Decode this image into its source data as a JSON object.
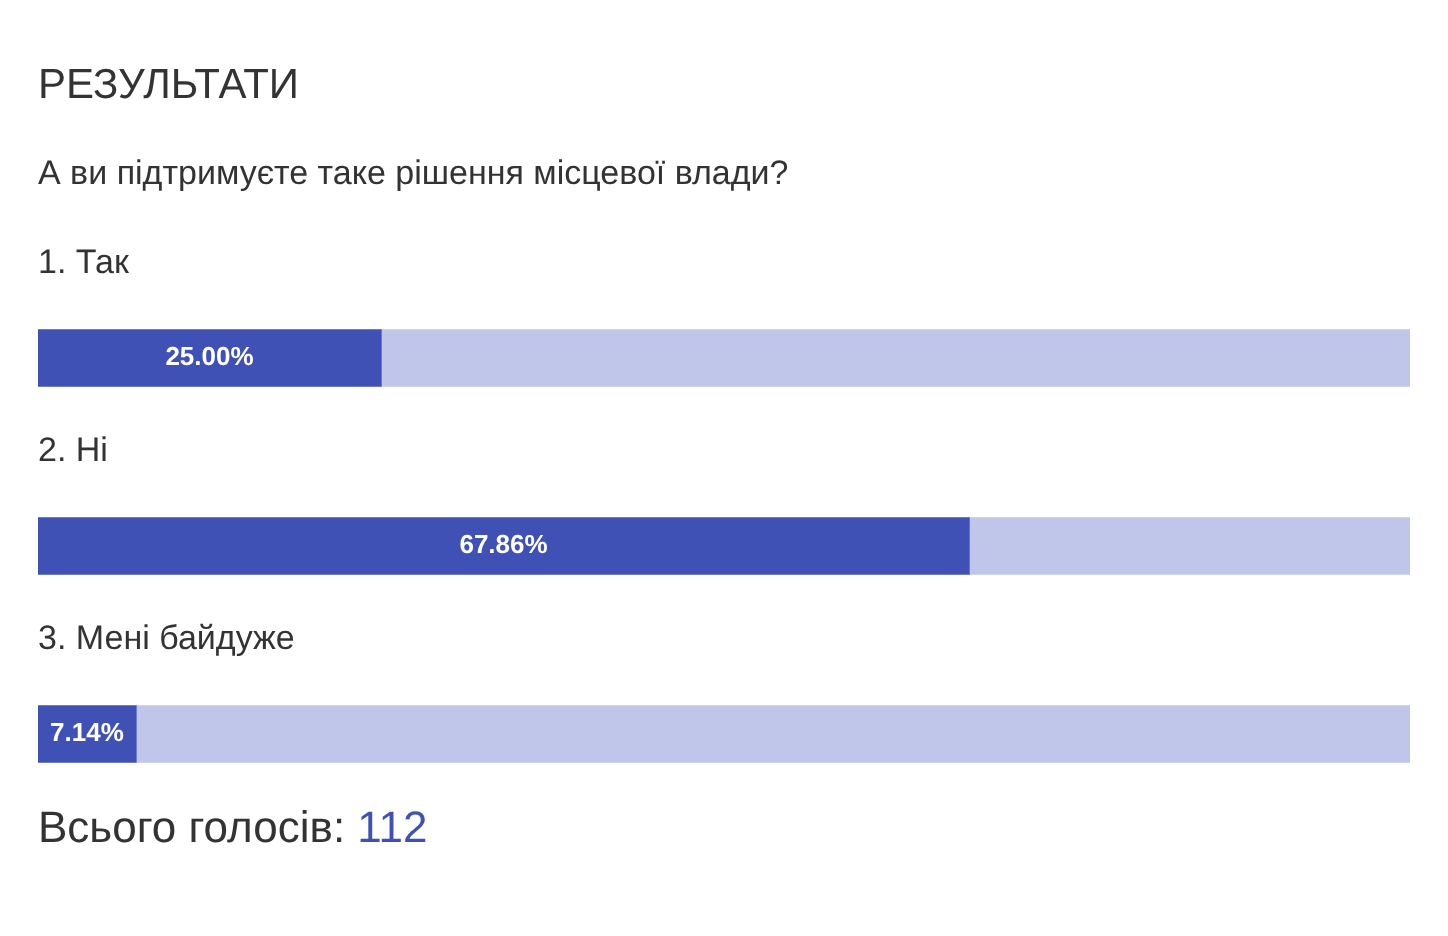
{
  "chart_data": {
    "type": "bar",
    "orientation": "horizontal",
    "stacked": true,
    "title": "РЕЗУЛЬТАТИ",
    "subtitle": "А ви підтримуєте таке рішення місцевої влади?",
    "categories": [
      "1. Так",
      "2. Ні",
      "3. Мені байдуже"
    ],
    "series": [
      {
        "color": "#3f51b5",
        "values": [
          25.0,
          67.86,
          7.14
        ],
        "value_labels": [
          "25.00%",
          "67.86%",
          "7.14%"
        ]
      },
      {
        "color": "#c0c6e9",
        "values": [
          75.0,
          32.14,
          92.86
        ]
      }
    ],
    "xlim": [
      0,
      100
    ],
    "tick_labels": false,
    "legend": false,
    "annotations": [
      "Всього голосів: 112"
    ]
  }
}
